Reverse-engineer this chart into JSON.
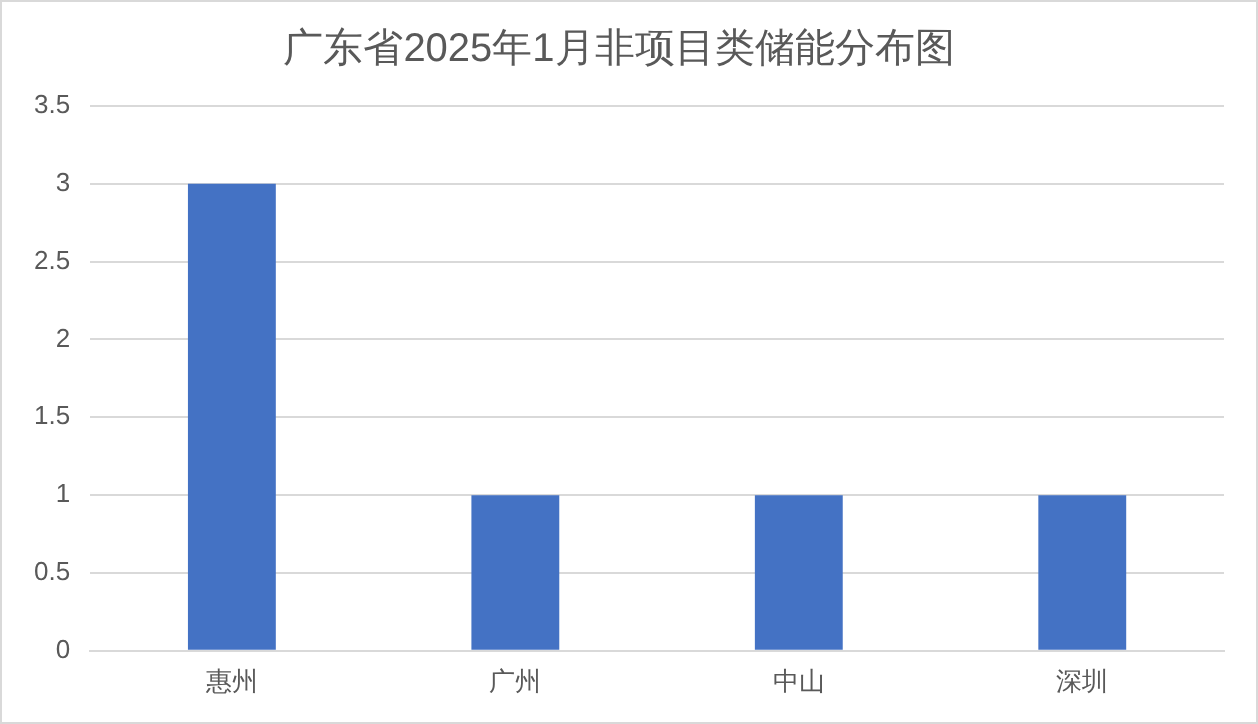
{
  "chart_data": {
    "type": "bar",
    "title": "广东省2025年1月非项目类储能分布图",
    "categories": [
      "惠州",
      "广州",
      "中山",
      "深圳"
    ],
    "values": [
      3,
      1,
      1,
      1
    ],
    "color": "#4472c4",
    "ylim": [
      0,
      3.5
    ],
    "yticks": [
      0,
      0.5,
      1,
      1.5,
      2,
      2.5,
      3,
      3.5
    ],
    "grid": "y",
    "legend": false
  }
}
